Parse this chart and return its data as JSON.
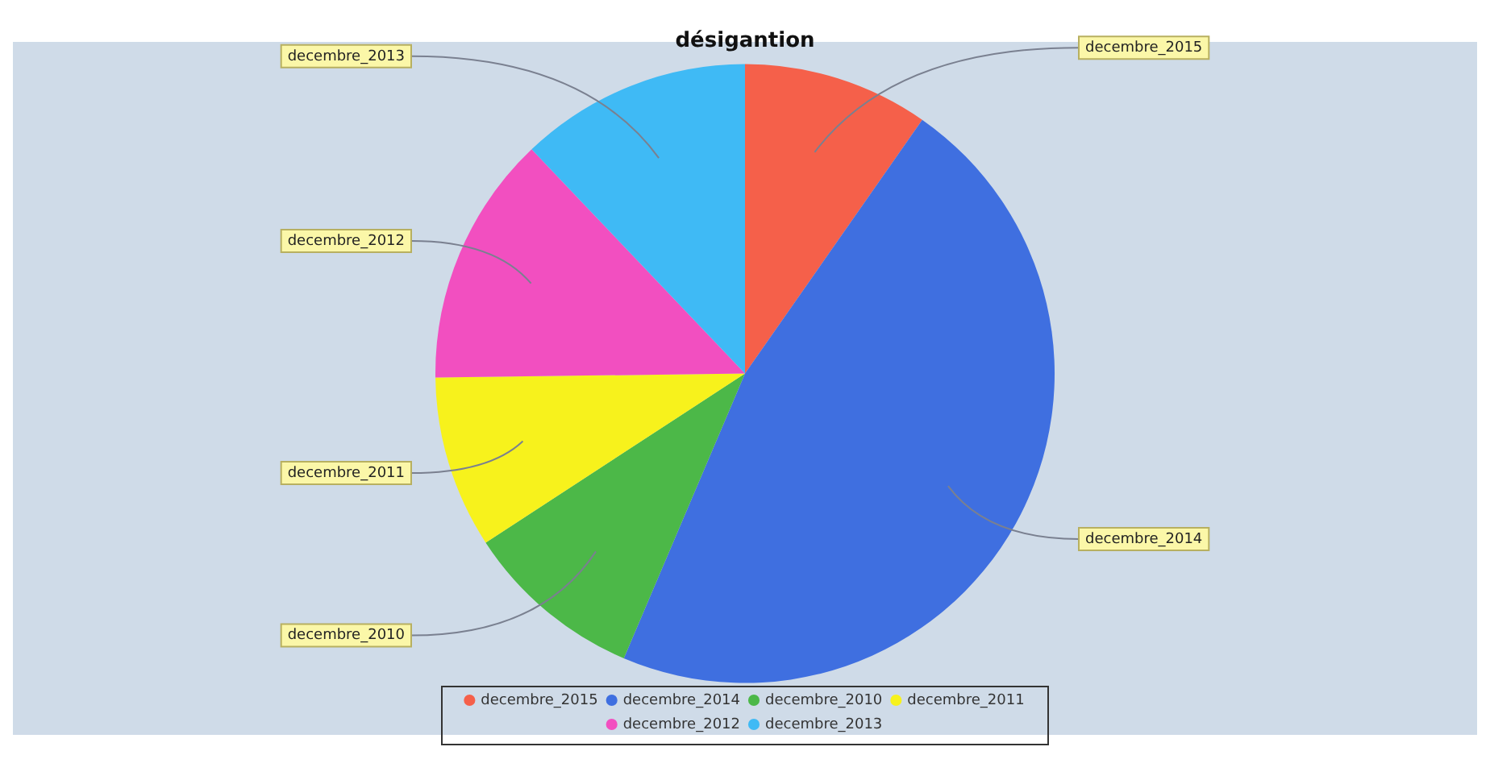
{
  "chart_data": {
    "type": "pie",
    "title": "désigantion",
    "categories": [
      "decembre_2015",
      "decembre_2014",
      "decembre_2010",
      "decembre_2011",
      "decembre_2012",
      "decembre_2013"
    ],
    "values": [
      9.7,
      46.7,
      9.4,
      9.0,
      13.1,
      12.1
    ],
    "colors": [
      "#f5604a",
      "#3f6fe0",
      "#4cb848",
      "#f7f21c",
      "#f24fc0",
      "#3fbaf5"
    ],
    "legend": "bottom"
  }
}
